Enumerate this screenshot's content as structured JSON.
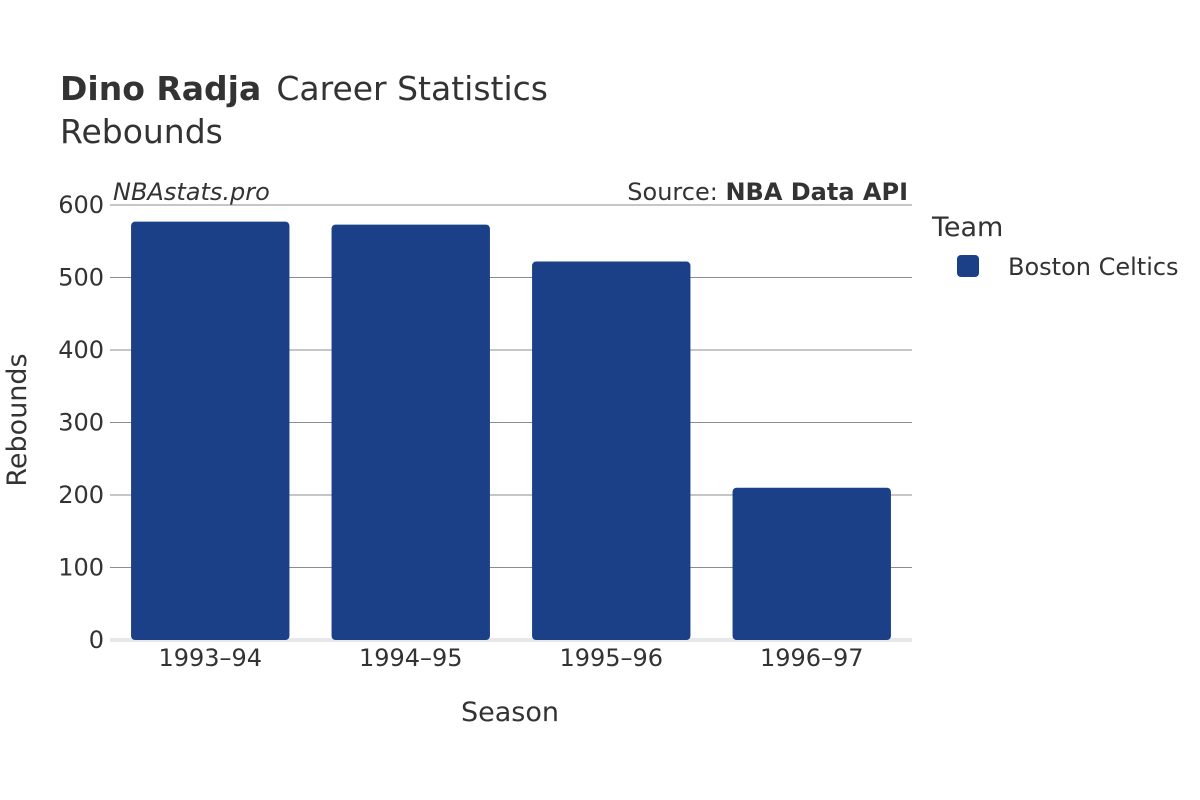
{
  "header": {
    "player_name": "Dino Radja",
    "title_suffix": "Career Statistics",
    "subtitle": "Rebounds"
  },
  "watermark": "NBAstats.pro",
  "source": {
    "prefix": "Source: ",
    "name": "NBA Data API"
  },
  "legend": {
    "title": "Team",
    "position": "right"
  },
  "chart_data": {
    "type": "bar",
    "title": "Dino Radja Career Statistics",
    "subtitle": "Rebounds",
    "xlabel": "Season",
    "ylabel": "Rebounds",
    "categories": [
      "1993–94",
      "1994–95",
      "1995–96",
      "1996–97"
    ],
    "series": [
      {
        "name": "Boston Celtics",
        "color": "#1c4088",
        "values": [
          577,
          573,
          522,
          210
        ]
      }
    ],
    "ylim": [
      0,
      600
    ],
    "yticks": [
      0,
      100,
      200,
      300,
      400,
      500,
      600
    ],
    "grid": true
  }
}
